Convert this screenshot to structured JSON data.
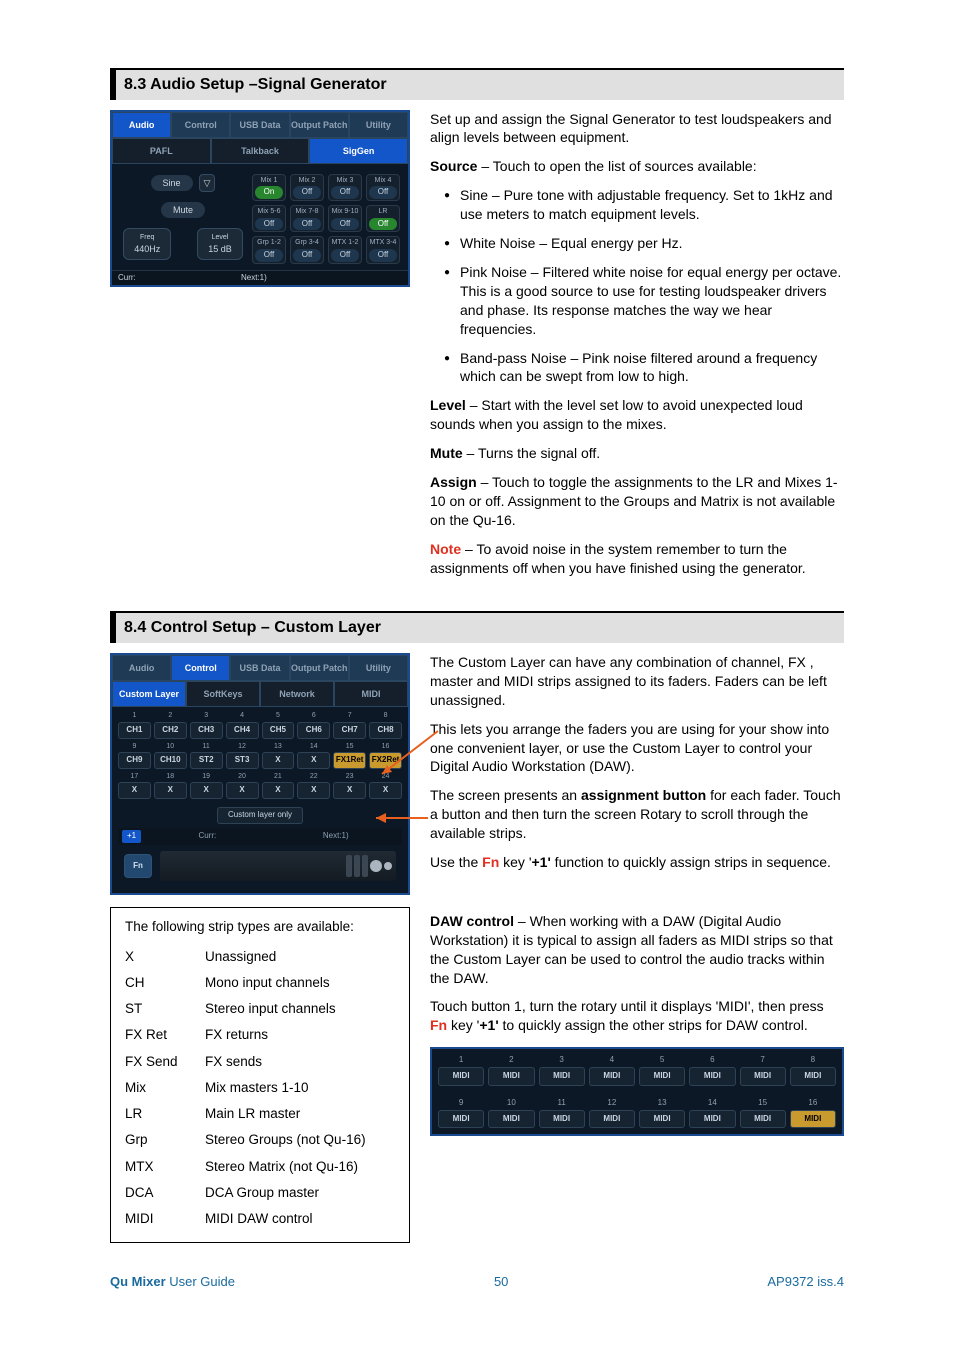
{
  "section83": {
    "title": "8.3  Audio Setup –Signal Generator"
  },
  "section84": {
    "title": "8.4  Control Setup – Custom Layer"
  },
  "siggen": {
    "tabs1": [
      "Audio",
      "Control",
      "USB Data",
      "Output Patch",
      "Utility"
    ],
    "tabs1_active": 0,
    "tabs2": [
      "PAFL",
      "Talkback",
      "SigGen"
    ],
    "tabs2_active": 2,
    "source_label": "Sine",
    "mute_label": "Mute",
    "freq_label": "Freq",
    "freq_val": "440Hz",
    "level_label": "Level",
    "level_val": "15 dB",
    "mixes": [
      {
        "t": "Mix 1",
        "s": "On",
        "c": "green"
      },
      {
        "t": "Mix 2",
        "s": "Off",
        "c": ""
      },
      {
        "t": "Mix 3",
        "s": "Off",
        "c": ""
      },
      {
        "t": "Mix 4",
        "s": "Off",
        "c": ""
      },
      {
        "t": "Mix 5-6",
        "s": "Off",
        "c": ""
      },
      {
        "t": "Mix 7-8",
        "s": "Off",
        "c": ""
      },
      {
        "t": "Mix 9-10",
        "s": "Off",
        "c": ""
      },
      {
        "t": "LR",
        "s": "Off",
        "c": "green"
      },
      {
        "t": "Grp 1-2",
        "s": "Off",
        "c": ""
      },
      {
        "t": "Grp 3-4",
        "s": "Off",
        "c": ""
      },
      {
        "t": "MTX 1-2",
        "s": "Off",
        "c": ""
      },
      {
        "t": "MTX 3-4",
        "s": "Off",
        "c": ""
      }
    ],
    "curr": "Curr:",
    "next": "Next:1)"
  },
  "sig_text": {
    "intro": "Set up and assign the Signal Generator to test loudspeakers and align levels between equipment.",
    "source_head": "Source",
    "source_body": " – Touch to open the list of sources available:",
    "bullets": [
      "Sine – Pure tone with adjustable frequency. Set to 1kHz and use meters to match equipment levels.",
      "White Noise – Equal energy per Hz.",
      "Pink Noise – Filtered white noise for equal energy per octave. This is a good source to use for testing loudspeaker drivers and phase. Its response matches the way we hear frequencies.",
      "Band-pass Noise – Pink noise filtered around a frequency which can be swept from low to high."
    ],
    "level_head": "Level",
    "level_body": " – Start with the level set low to avoid unexpected loud sounds when you assign to the mixes.",
    "mute_head": "Mute",
    "mute_body": " – Turns the signal off.",
    "assign_head": "Assign",
    "assign_body": " – Touch to toggle the assignments to the LR and Mixes 1-10 on or off. Assignment to the Groups and Matrix is not available on the Qu-16.",
    "note_head": "Note",
    "note_body": " – To avoid noise in the system remember to turn the assignments off when you have finished using the generator."
  },
  "custom": {
    "tabs1": [
      "Audio",
      "Control",
      "USB Data",
      "Output Patch",
      "Utility"
    ],
    "tabs1_active": 1,
    "tabs2": [
      "Custom Layer",
      "SoftKeys",
      "Network",
      "MIDI"
    ],
    "tabs2_active": 0,
    "cells": [
      {
        "n": "1",
        "v": "CH1"
      },
      {
        "n": "2",
        "v": "CH2"
      },
      {
        "n": "3",
        "v": "CH3"
      },
      {
        "n": "4",
        "v": "CH4"
      },
      {
        "n": "5",
        "v": "CH5"
      },
      {
        "n": "6",
        "v": "CH6"
      },
      {
        "n": "7",
        "v": "CH7"
      },
      {
        "n": "8",
        "v": "CH8"
      },
      {
        "n": "9",
        "v": "CH9"
      },
      {
        "n": "10",
        "v": "CH10"
      },
      {
        "n": "11",
        "v": "ST2"
      },
      {
        "n": "12",
        "v": "ST3"
      },
      {
        "n": "13",
        "v": "X"
      },
      {
        "n": "14",
        "v": "X"
      },
      {
        "n": "15",
        "v": "FX1Ret",
        "cls": "fx"
      },
      {
        "n": "16",
        "v": "FX2Ret",
        "cls": "fx"
      },
      {
        "n": "17",
        "v": "X"
      },
      {
        "n": "18",
        "v": "X"
      },
      {
        "n": "19",
        "v": "X"
      },
      {
        "n": "20",
        "v": "X"
      },
      {
        "n": "21",
        "v": "X"
      },
      {
        "n": "22",
        "v": "X"
      },
      {
        "n": "23",
        "v": "X"
      },
      {
        "n": "24",
        "v": "X"
      }
    ],
    "btn": "Custom layer only",
    "plus": "+1",
    "curr": "Curr:",
    "next": "Next:1)",
    "fn": "Fn"
  },
  "custom_text": {
    "p1": "The Custom Layer can have any combination of channel, FX , master and MIDI strips assigned to its faders. Faders can be left unassigned.",
    "p2": "This lets you arrange the faders you are using for your show into one convenient layer, or use the Custom Layer to control your Digital Audio Workstation (DAW).",
    "p3a": "The screen presents an ",
    "p3b": "assignment button",
    "p3c": " for each fader. Touch a button and then turn the screen Rotary to scroll through the available strips.",
    "p4a": "Use the ",
    "p4b": "Fn",
    "p4c": " key '",
    "p4d": "+1'",
    "p4e": " function to quickly assign strips in sequence.",
    "p5a": "DAW control",
    "p5b": " – When working with a DAW (Digital Audio Workstation) it is typical to assign all faders as MIDI strips so that the Custom Layer can be used to control the audio tracks within the DAW.",
    "p6a": "Touch button 1, turn the rotary until it displays 'MIDI', then press ",
    "p6b": "Fn",
    "p6c": " key '",
    "p6d": "+1'",
    "p6e": " to quickly assign the other strips for DAW control."
  },
  "strips": {
    "title": "The following strip types are available:",
    "rows": [
      [
        "X",
        "Unassigned"
      ],
      [
        "CH",
        "Mono input channels"
      ],
      [
        "ST",
        "Stereo input channels"
      ],
      [
        "FX Ret",
        "FX returns"
      ],
      [
        "FX Send",
        "FX sends"
      ],
      [
        "Mix",
        "Mix masters 1-10"
      ],
      [
        "LR",
        "Main LR master"
      ],
      [
        "Grp",
        "Stereo Groups (not Qu-16)"
      ],
      [
        "MTX",
        "Stereo Matrix (not Qu-16)"
      ],
      [
        "DCA",
        "DCA Group master"
      ],
      [
        "MIDI",
        "MIDI DAW control"
      ]
    ]
  },
  "midi": {
    "cells": [
      {
        "n": "1",
        "v": "MIDI"
      },
      {
        "n": "2",
        "v": "MIDI"
      },
      {
        "n": "3",
        "v": "MIDI"
      },
      {
        "n": "4",
        "v": "MIDI"
      },
      {
        "n": "5",
        "v": "MIDI"
      },
      {
        "n": "6",
        "v": "MIDI"
      },
      {
        "n": "7",
        "v": "MIDI"
      },
      {
        "n": "8",
        "v": "MIDI"
      },
      {
        "n": "9",
        "v": "MIDI"
      },
      {
        "n": "10",
        "v": "MIDI"
      },
      {
        "n": "11",
        "v": "MIDI"
      },
      {
        "n": "12",
        "v": "MIDI"
      },
      {
        "n": "13",
        "v": "MIDI"
      },
      {
        "n": "14",
        "v": "MIDI"
      },
      {
        "n": "15",
        "v": "MIDI"
      },
      {
        "n": "16",
        "v": "MIDI",
        "cls": "yellow"
      }
    ]
  },
  "footer": {
    "left_b": "Qu Mixer",
    "left": " User Guide",
    "mid": "50",
    "right": "AP9372 iss.4"
  }
}
